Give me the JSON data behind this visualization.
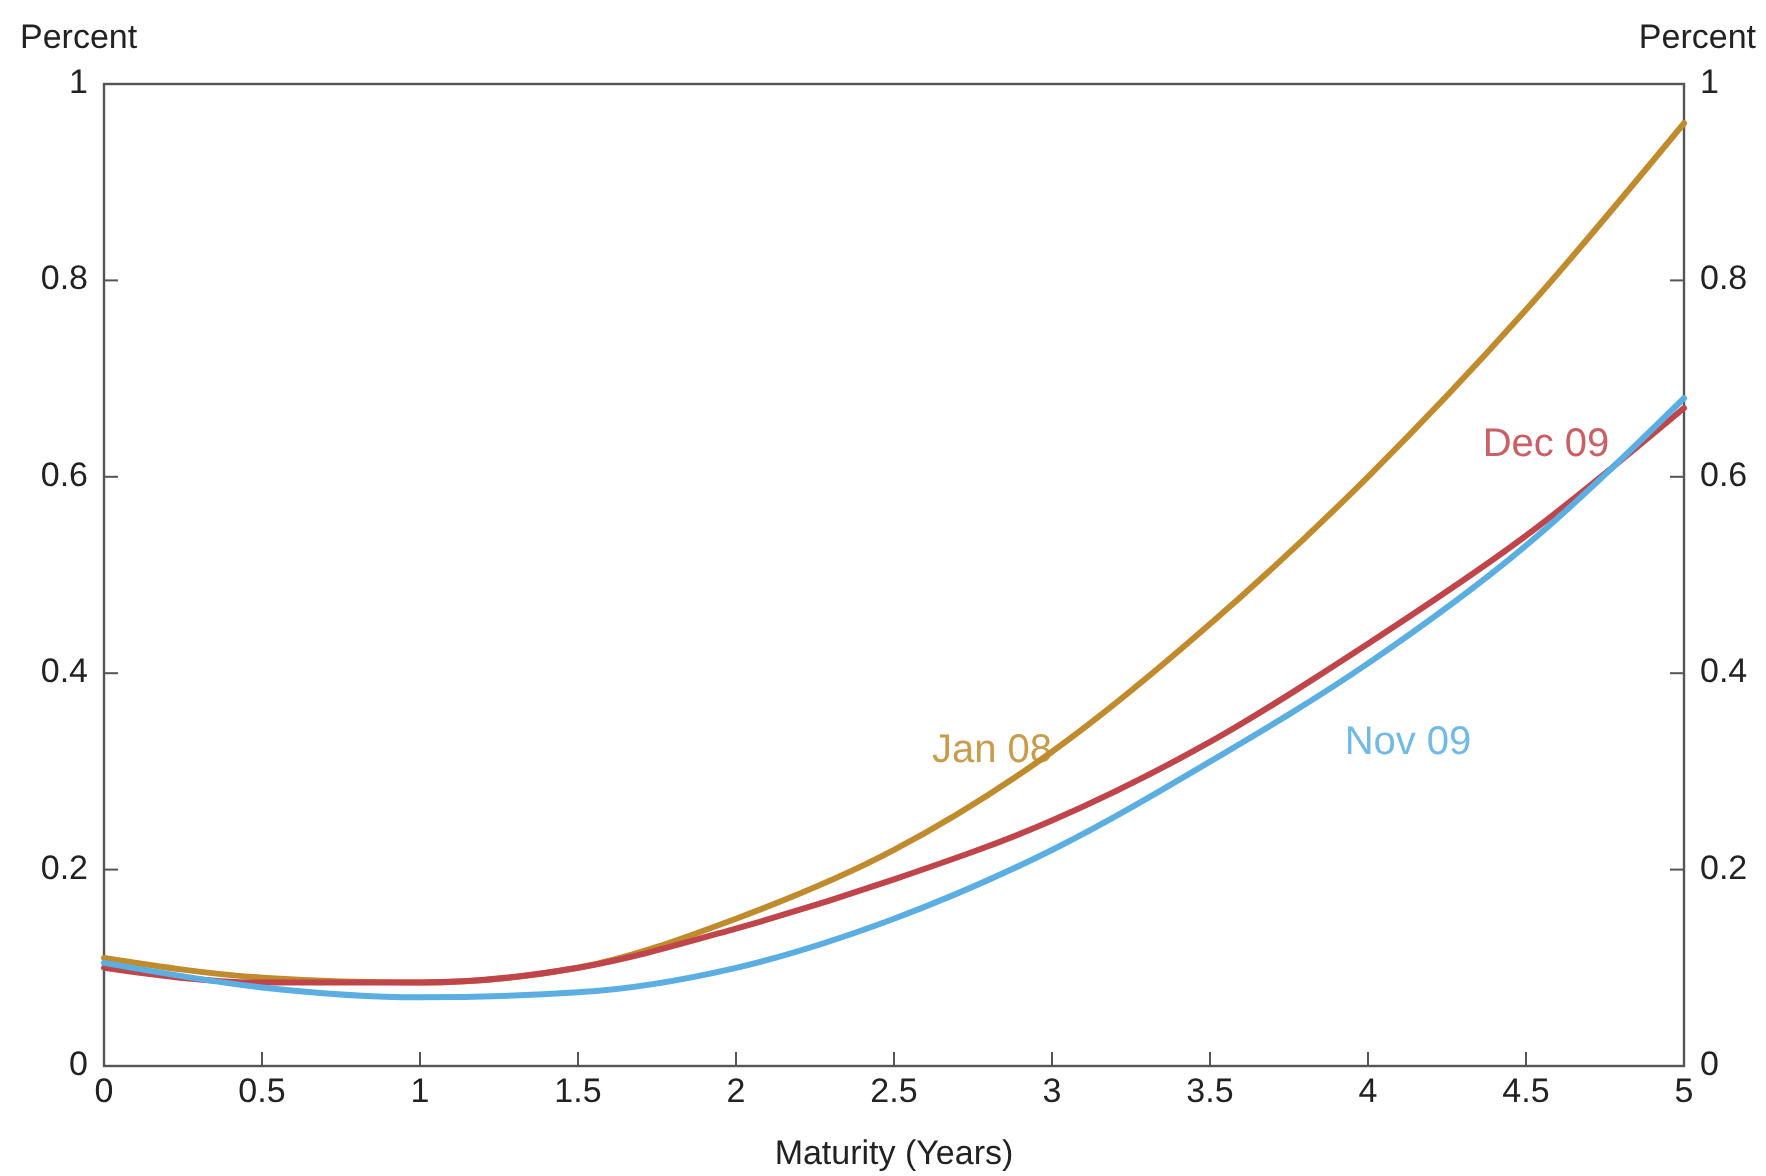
{
  "chart_data": {
    "type": "line",
    "xlabel": "Maturity (Years)",
    "ylabel": "Percent",
    "y2label": "Percent",
    "x": [
      0,
      0.5,
      1,
      1.5,
      2,
      2.5,
      3,
      3.5,
      4,
      4.5,
      5
    ],
    "xlim": [
      0,
      5
    ],
    "xticks": [
      0,
      0.5,
      1,
      1.5,
      2,
      2.5,
      3,
      3.5,
      4,
      4.5,
      5
    ],
    "ylim": [
      0,
      1
    ],
    "yticks": [
      0,
      0.2,
      0.4,
      0.6,
      0.8,
      1
    ],
    "y2lim": [
      0,
      1
    ],
    "y2ticks": [
      0,
      0.2,
      0.4,
      0.6,
      0.8,
      1
    ],
    "grid": false,
    "legend": false,
    "marker": "none",
    "line_style": "solid",
    "series": [
      {
        "name": "Jan 08",
        "color": "#c08b2c",
        "values": [
          0.11,
          0.09,
          0.085,
          0.1,
          0.15,
          0.22,
          0.32,
          0.45,
          0.6,
          0.77,
          0.96
        ]
      },
      {
        "name": "Dec 09",
        "color": "#c0454b",
        "values": [
          0.1,
          0.085,
          0.085,
          0.1,
          0.14,
          0.19,
          0.25,
          0.33,
          0.43,
          0.54,
          0.67
        ]
      },
      {
        "name": "Nov 09",
        "color": "#5aaee2",
        "values": [
          0.105,
          0.08,
          0.07,
          0.075,
          0.1,
          0.15,
          0.22,
          0.31,
          0.41,
          0.53,
          0.68
        ]
      }
    ]
  }
}
